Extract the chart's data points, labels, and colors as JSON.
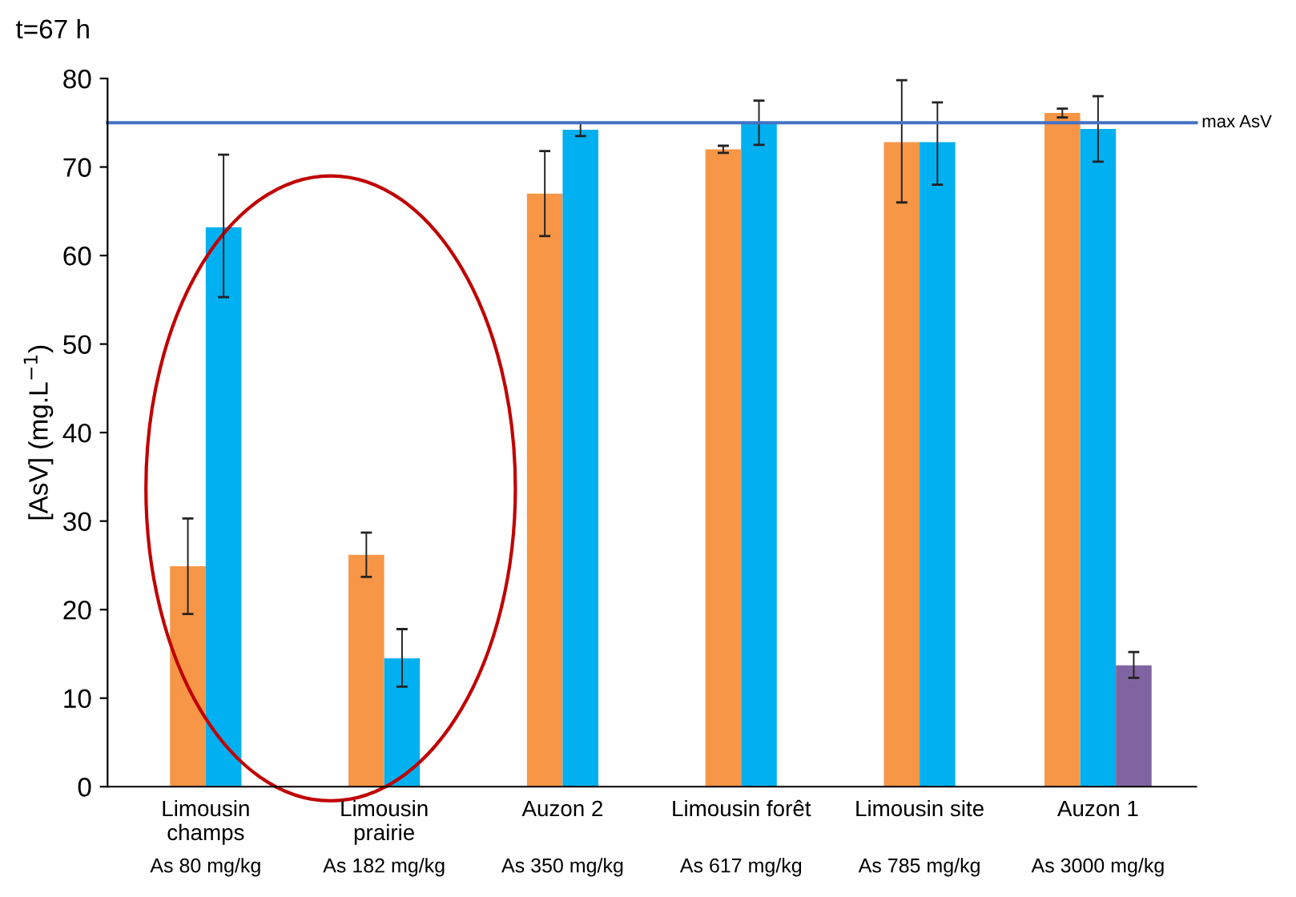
{
  "chart_data": {
    "type": "bar",
    "title": "t=67 h",
    "ylabel": "[AsV] (mg.L$^{−1}$)",
    "categories": [
      "Limousin\nchamps",
      "Limousin\nprairie",
      "Auzon 2",
      "Limousin forêt",
      "Limousin site",
      "Auzon 1"
    ],
    "series": [
      {
        "color": "#f79646",
        "values": [
          24.9,
          26.2,
          67.0,
          72.0,
          72.8,
          76.1
        ],
        "errors": [
          [
            19.5,
            30.3
          ],
          [
            23.7,
            28.7
          ],
          [
            62.2,
            71.8
          ],
          [
            71.6,
            72.4
          ],
          [
            66.0,
            79.8
          ],
          [
            75.6,
            76.6
          ]
        ]
      },
      {
        "color": "#00b0f0",
        "values": [
          63.2,
          14.5,
          74.2,
          75.0,
          72.8,
          74.3
        ],
        "errors": [
          [
            55.3,
            71.4
          ],
          [
            11.3,
            17.8
          ],
          [
            73.5,
            75.0
          ],
          [
            72.5,
            77.5
          ],
          [
            68.0,
            77.3
          ],
          [
            70.6,
            78.0
          ]
        ]
      },
      {
        "color": "#8064a2",
        "values": [
          null,
          null,
          null,
          null,
          null,
          13.7
        ],
        "errors": [
          null,
          null,
          null,
          null,
          null,
          [
            12.3,
            15.2
          ]
        ]
      }
    ],
    "annotations": [
      "As 80 mg/kg",
      "As 182 mg/kg",
      "As 350 mg/kg",
      "As 617 mg/kg",
      "As 785 mg/kg",
      "As 3000 mg/kg"
    ],
    "ref_lines": [
      {
        "axis": "y",
        "value": 75,
        "label": "max AsV",
        "color": "#4472c4"
      }
    ],
    "ylim": [
      0,
      80
    ],
    "yticks": [
      0,
      10,
      20,
      30,
      40,
      50,
      60,
      70,
      80
    ],
    "grid": false,
    "legend": false
  }
}
